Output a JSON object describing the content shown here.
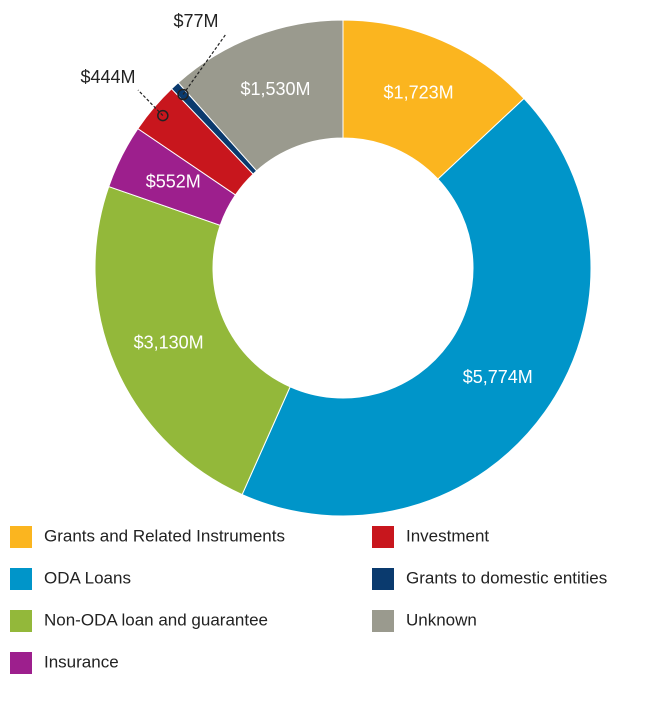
{
  "chart_data": {
    "type": "donut",
    "categories": [
      "Grants and Related Instruments",
      "ODA Loans",
      "Non-ODA loan and guarantee",
      "Insurance",
      "Investment",
      "Grants to domestic entities",
      "Unknown"
    ],
    "values": [
      1723,
      5774,
      3130,
      552,
      444,
      77,
      1530
    ],
    "value_labels": [
      "$1,723M",
      "$5,774M",
      "$3,130M",
      "$552M",
      "$444M",
      "$77M",
      "$1,530M"
    ],
    "colors": [
      "#fbb51f",
      "#0095c9",
      "#93b83a",
      "#9d1f8d",
      "#c8161d",
      "#0a3a6e",
      "#9a9a8e"
    ],
    "legend": "bottom"
  }
}
